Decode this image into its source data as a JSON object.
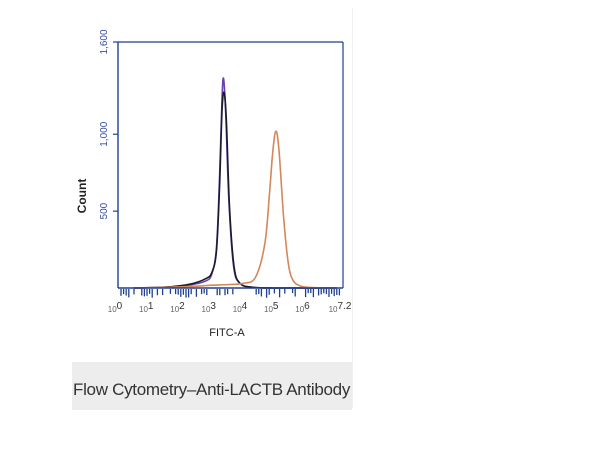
{
  "caption": "Flow Cytometry–Anti-LACTB Antibody",
  "chart_data": {
    "type": "line",
    "title": "",
    "xlabel": "FITC-A",
    "ylabel": "Count",
    "x_scale": "log10",
    "xlim_exponent": [
      0,
      7.2
    ],
    "ylim": [
      0,
      1600
    ],
    "y_ticks": [
      {
        "value": 500,
        "label": "500"
      },
      {
        "value": 1000,
        "label": "1,000"
      },
      {
        "value": 1600,
        "label": "1,600"
      }
    ],
    "x_ticks": [
      {
        "exp": 0,
        "base": "10",
        "sup": "0"
      },
      {
        "exp": 1,
        "base": "10",
        "sup": "1"
      },
      {
        "exp": 2,
        "base": "10",
        "sup": "2"
      },
      {
        "exp": 3,
        "base": "10",
        "sup": "3"
      },
      {
        "exp": 4,
        "base": "10",
        "sup": "4"
      },
      {
        "exp": 5,
        "base": "10",
        "sup": "5"
      },
      {
        "exp": 6,
        "base": "10",
        "sup": "6"
      },
      {
        "exp": 7.2,
        "base": "10",
        "sup": "7.2"
      }
    ],
    "axis_color": "#1f3f8f",
    "series": [
      {
        "color": "#6a3fb0",
        "x_log10": [
          0.5,
          1.5,
          2.3,
          2.8,
          3.0,
          3.15,
          3.25,
          3.33,
          3.38,
          3.45,
          3.55,
          3.7,
          3.9,
          4.3,
          5.0,
          6.0,
          7.0
        ],
        "y": [
          0,
          5,
          20,
          45,
          90,
          260,
          720,
          1240,
          1360,
          1120,
          560,
          140,
          30,
          5,
          0,
          0,
          0
        ]
      },
      {
        "color": "#1a1a2e",
        "x_log10": [
          0.5,
          1.5,
          2.3,
          2.8,
          3.0,
          3.15,
          3.25,
          3.33,
          3.4,
          3.47,
          3.57,
          3.72,
          3.92,
          4.3,
          5.0,
          6.0,
          7.0
        ],
        "y": [
          0,
          5,
          25,
          60,
          100,
          240,
          660,
          1160,
          1270,
          1080,
          520,
          130,
          28,
          5,
          0,
          0,
          0
        ]
      },
      {
        "color": "#d4875a",
        "x_log10": [
          0.5,
          1.5,
          2.5,
          3.0,
          3.5,
          4.0,
          4.4,
          4.7,
          4.85,
          4.95,
          5.05,
          5.15,
          5.3,
          5.45,
          5.6,
          5.85,
          6.2,
          7.0
        ],
        "y": [
          0,
          4,
          12,
          18,
          22,
          30,
          70,
          290,
          620,
          880,
          1020,
          900,
          460,
          160,
          50,
          12,
          3,
          0
        ]
      }
    ]
  }
}
